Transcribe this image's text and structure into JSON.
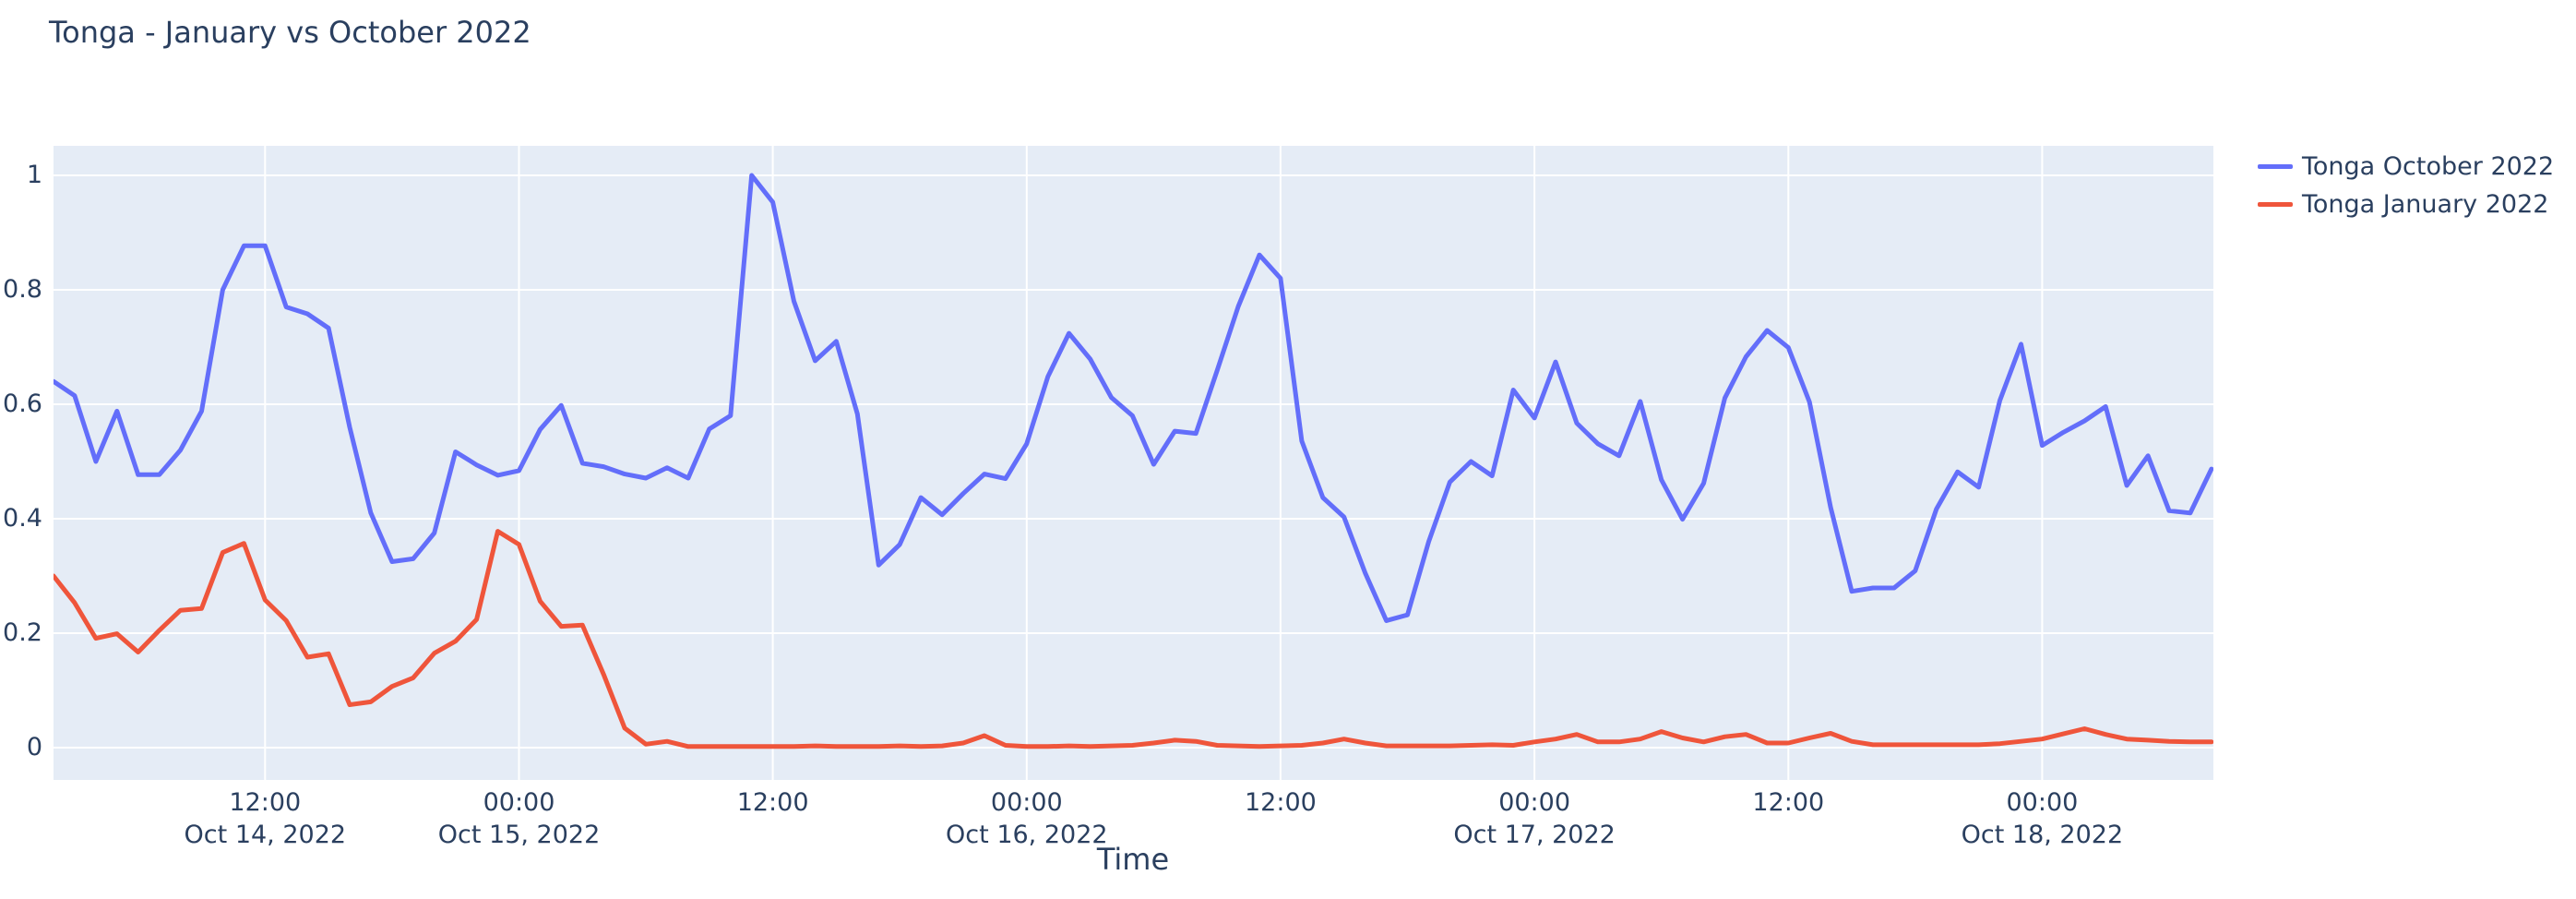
{
  "title": {
    "text": "Tonga - January vs October 2022",
    "color": "#2a3f5f"
  },
  "x_axis": {
    "title": "Time"
  },
  "y_axis": {
    "tick_labels": [
      "0",
      "0.2",
      "0.4",
      "0.6",
      "0.8",
      "1"
    ]
  },
  "chart_data": {
    "type": "line",
    "title": "Tonga - January vs October 2022",
    "xlabel": "Time",
    "ylabel": "",
    "plot_bg": "#e5ecf6",
    "grid": true,
    "grid_color": "#ffffff",
    "text_color": "#2a3f5f",
    "legend_position": "outside-top-right",
    "x_interval": "1 hour",
    "x_start": "2022-10-14 02:00",
    "x_end": "2022-10-18 08:00",
    "ylim": [
      -0.056,
      1.052
    ],
    "yticks": [
      0,
      0.2,
      0.4,
      0.6,
      0.8,
      1
    ],
    "x_ticks": [
      {
        "index": 10,
        "time": "12:00",
        "date": "Oct 14, 2022"
      },
      {
        "index": 22,
        "time": "00:00",
        "date": "Oct 15, 2022"
      },
      {
        "index": 34,
        "time": "12:00",
        "date": ""
      },
      {
        "index": 46,
        "time": "00:00",
        "date": "Oct 16, 2022"
      },
      {
        "index": 58,
        "time": "12:00",
        "date": ""
      },
      {
        "index": 70,
        "time": "00:00",
        "date": "Oct 17, 2022"
      },
      {
        "index": 82,
        "time": "12:00",
        "date": ""
      },
      {
        "index": 94,
        "time": "00:00",
        "date": "Oct 18, 2022"
      }
    ],
    "x": [
      "2022-10-14 02:00",
      "2022-10-14 03:00",
      "2022-10-14 04:00",
      "2022-10-14 05:00",
      "2022-10-14 06:00",
      "2022-10-14 07:00",
      "2022-10-14 08:00",
      "2022-10-14 09:00",
      "2022-10-14 10:00",
      "2022-10-14 11:00",
      "2022-10-14 12:00",
      "2022-10-14 13:00",
      "2022-10-14 14:00",
      "2022-10-14 15:00",
      "2022-10-14 16:00",
      "2022-10-14 17:00",
      "2022-10-14 18:00",
      "2022-10-14 19:00",
      "2022-10-14 20:00",
      "2022-10-14 21:00",
      "2022-10-14 22:00",
      "2022-10-14 23:00",
      "2022-10-15 00:00",
      "2022-10-15 01:00",
      "2022-10-15 02:00",
      "2022-10-15 03:00",
      "2022-10-15 04:00",
      "2022-10-15 05:00",
      "2022-10-15 06:00",
      "2022-10-15 07:00",
      "2022-10-15 08:00",
      "2022-10-15 09:00",
      "2022-10-15 10:00",
      "2022-10-15 11:00",
      "2022-10-15 12:00",
      "2022-10-15 13:00",
      "2022-10-15 14:00",
      "2022-10-15 15:00",
      "2022-10-15 16:00",
      "2022-10-15 17:00",
      "2022-10-15 18:00",
      "2022-10-15 19:00",
      "2022-10-15 20:00",
      "2022-10-15 21:00",
      "2022-10-15 22:00",
      "2022-10-15 23:00",
      "2022-10-16 00:00",
      "2022-10-16 01:00",
      "2022-10-16 02:00",
      "2022-10-16 03:00",
      "2022-10-16 04:00",
      "2022-10-16 05:00",
      "2022-10-16 06:00",
      "2022-10-16 07:00",
      "2022-10-16 08:00",
      "2022-10-16 09:00",
      "2022-10-16 10:00",
      "2022-10-16 11:00",
      "2022-10-16 12:00",
      "2022-10-16 13:00",
      "2022-10-16 14:00",
      "2022-10-16 15:00",
      "2022-10-16 16:00",
      "2022-10-16 17:00",
      "2022-10-16 18:00",
      "2022-10-16 19:00",
      "2022-10-16 20:00",
      "2022-10-16 21:00",
      "2022-10-16 22:00",
      "2022-10-16 23:00",
      "2022-10-17 00:00",
      "2022-10-17 01:00",
      "2022-10-17 02:00",
      "2022-10-17 03:00",
      "2022-10-17 04:00",
      "2022-10-17 05:00",
      "2022-10-17 06:00",
      "2022-10-17 07:00",
      "2022-10-17 08:00",
      "2022-10-17 09:00",
      "2022-10-17 10:00",
      "2022-10-17 11:00",
      "2022-10-17 12:00",
      "2022-10-17 13:00",
      "2022-10-17 14:00",
      "2022-10-17 15:00",
      "2022-10-17 16:00",
      "2022-10-17 17:00",
      "2022-10-17 18:00",
      "2022-10-17 19:00",
      "2022-10-17 20:00",
      "2022-10-17 21:00",
      "2022-10-17 22:00",
      "2022-10-17 23:00",
      "2022-10-18 00:00",
      "2022-10-18 01:00",
      "2022-10-18 02:00",
      "2022-10-18 03:00",
      "2022-10-18 04:00",
      "2022-10-18 05:00",
      "2022-10-18 06:00",
      "2022-10-18 07:00",
      "2022-10-18 08:00"
    ],
    "series": [
      {
        "name": "Tonga October 2022",
        "color": "#636efa",
        "values": [
          0.64,
          0.615,
          0.5,
          0.588,
          0.477,
          0.477,
          0.52,
          0.588,
          0.8,
          0.877,
          0.877,
          0.77,
          0.758,
          0.733,
          0.56,
          0.41,
          0.325,
          0.33,
          0.375,
          0.517,
          0.494,
          0.476,
          0.484,
          0.556,
          0.598,
          0.497,
          0.491,
          0.478,
          0.471,
          0.489,
          0.471,
          0.557,
          0.58,
          1.0,
          0.953,
          0.78,
          0.676,
          0.71,
          0.583,
          0.319,
          0.355,
          0.437,
          0.407,
          0.444,
          0.478,
          0.47,
          0.531,
          0.648,
          0.724,
          0.679,
          0.612,
          0.58,
          0.495,
          0.553,
          0.549,
          0.659,
          0.771,
          0.861,
          0.82,
          0.536,
          0.437,
          0.403,
          0.305,
          0.222,
          0.232,
          0.36,
          0.464,
          0.5,
          0.475,
          0.625,
          0.576,
          0.674,
          0.567,
          0.531,
          0.51,
          0.605,
          0.468,
          0.399,
          0.462,
          0.611,
          0.683,
          0.729,
          0.699,
          0.604,
          0.42,
          0.273,
          0.279,
          0.279,
          0.309,
          0.417,
          0.482,
          0.455,
          0.607,
          0.705,
          0.528,
          0.551,
          0.571,
          0.596,
          0.458,
          0.51,
          0.414,
          0.41,
          0.487
        ]
      },
      {
        "name": "Tonga January 2022",
        "color": "#ef553b",
        "values": [
          0.3,
          0.253,
          0.191,
          0.199,
          0.167,
          0.205,
          0.24,
          0.243,
          0.341,
          0.357,
          0.258,
          0.222,
          0.158,
          0.164,
          0.075,
          0.08,
          0.107,
          0.122,
          0.165,
          0.186,
          0.224,
          0.378,
          0.355,
          0.256,
          0.212,
          0.214,
          0.128,
          0.034,
          0.006,
          0.011,
          0.002,
          0.002,
          0.002,
          0.002,
          0.002,
          0.002,
          0.003,
          0.002,
          0.002,
          0.002,
          0.003,
          0.002,
          0.003,
          0.008,
          0.021,
          0.004,
          0.002,
          0.002,
          0.003,
          0.002,
          0.003,
          0.004,
          0.008,
          0.013,
          0.011,
          0.004,
          0.003,
          0.002,
          0.003,
          0.004,
          0.008,
          0.015,
          0.008,
          0.003,
          0.003,
          0.003,
          0.003,
          0.004,
          0.005,
          0.004,
          0.01,
          0.015,
          0.023,
          0.01,
          0.01,
          0.015,
          0.028,
          0.017,
          0.01,
          0.019,
          0.023,
          0.008,
          0.008,
          0.017,
          0.025,
          0.011,
          0.005,
          0.005,
          0.005,
          0.005,
          0.005,
          0.005,
          0.007,
          0.011,
          0.015,
          0.024,
          0.033,
          0.023,
          0.015,
          0.013,
          0.011,
          0.01,
          0.01
        ]
      }
    ]
  }
}
